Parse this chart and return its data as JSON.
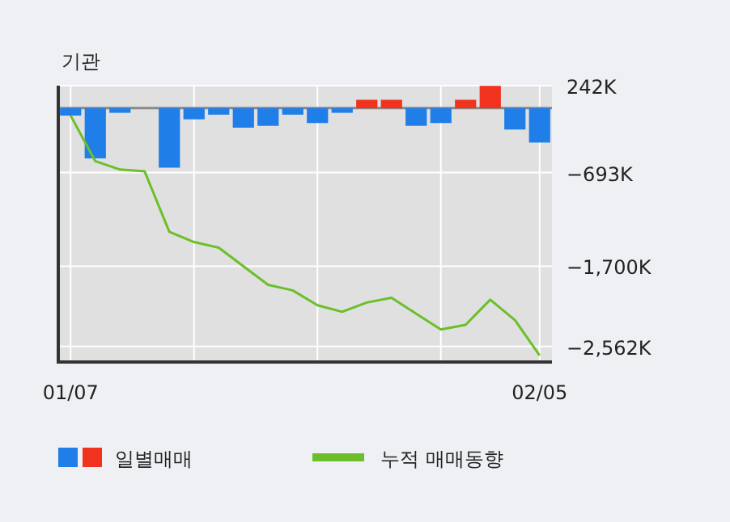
{
  "chart_data": {
    "type": "bar",
    "title": "기관",
    "categories": [
      "01/07",
      null,
      null,
      null,
      null,
      null,
      null,
      null,
      null,
      null,
      null,
      null,
      null,
      null,
      null,
      null,
      null,
      null,
      null,
      "02/05"
    ],
    "series": [
      {
        "name": "일별매매",
        "colors": [
          "#1f7ee8",
          "#1f7ee8",
          "#1f7ee8",
          "#1f7ee8",
          "#1f7ee8",
          "#1f7ee8",
          "#1f7ee8",
          "#1f7ee8",
          "#1f7ee8",
          "#1f7ee8",
          "#1f7ee8",
          "#1f7ee8",
          "#f0321e",
          "#f0321e",
          "#1f7ee8",
          "#1f7ee8",
          "#f0321e",
          "#f0321e",
          "#1f7ee8",
          "#1f7ee8"
        ],
        "values": [
          -80000,
          -540000,
          -50000,
          0,
          -640000,
          -120000,
          -70000,
          -210000,
          -190000,
          -70000,
          -160000,
          -50000,
          90000,
          90000,
          -190000,
          -160000,
          90000,
          240000,
          -230000,
          -370000
        ]
      },
      {
        "name": "누적 매매동향",
        "type": "line",
        "color": "#6cbf2a",
        "values": [
          -80000,
          -570000,
          -660000,
          -680000,
          -1330000,
          -1440000,
          -1500000,
          -1700000,
          -1900000,
          -1960000,
          -2120000,
          -2190000,
          -2090000,
          -2040000,
          -2210000,
          -2380000,
          -2330000,
          -2060000,
          -2280000,
          -2660000
        ]
      }
    ],
    "ylim": [
      -2730000,
      242000
    ],
    "yticks": [
      {
        "value": 242000,
        "label": "242K"
      },
      {
        "value": -693000,
        "label": "−693K"
      },
      {
        "value": -1700000,
        "label": "−1,700K"
      },
      {
        "value": -2562000,
        "label": "−2,562K"
      }
    ],
    "grid": true,
    "legend": "bottom"
  }
}
